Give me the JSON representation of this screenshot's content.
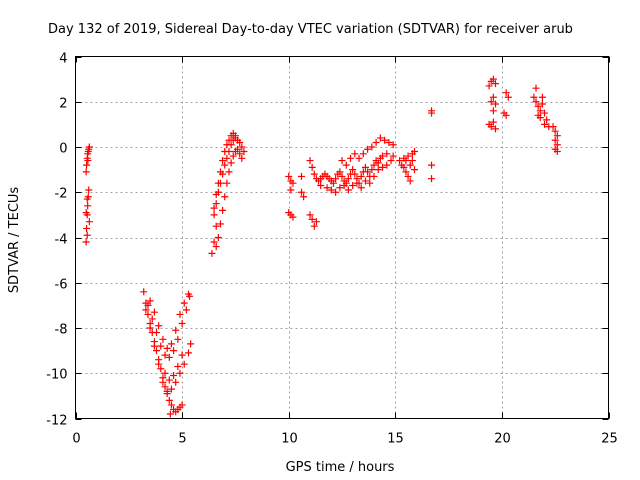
{
  "chart_data": {
    "type": "scatter",
    "title": "Day 132 of 2019, Sidereal Day-to-day VTEC variation (SDTVAR) for receiver arub",
    "xlabel": "GPS time / hours",
    "ylabel": "SDTVAR / TECUs",
    "xlim": [
      0,
      25
    ],
    "ylim": [
      -12,
      4
    ],
    "xticks": [
      0,
      5,
      10,
      15,
      20,
      25
    ],
    "yticks": [
      -12,
      -10,
      -8,
      -6,
      -4,
      -2,
      0,
      2,
      4
    ],
    "grid": true,
    "marker": "+",
    "color": "#ff0000",
    "series": [
      {
        "points": [
          [
            0.5,
            -4.2
          ],
          [
            0.52,
            -3.6
          ],
          [
            0.55,
            -3.0
          ],
          [
            0.57,
            -2.6
          ],
          [
            0.6,
            -2.2
          ],
          [
            0.62,
            -1.9
          ],
          [
            0.5,
            -2.9
          ],
          [
            0.55,
            -2.3
          ],
          [
            0.5,
            -1.1
          ],
          [
            0.52,
            -0.8
          ],
          [
            0.55,
            -0.5
          ],
          [
            0.57,
            -0.3
          ],
          [
            0.6,
            -0.2
          ],
          [
            0.62,
            -0.1
          ],
          [
            0.65,
            0.0
          ],
          [
            0.58,
            -0.6
          ],
          [
            0.65,
            -3.3
          ],
          [
            0.55,
            -3.9
          ],
          [
            3.2,
            -6.4
          ],
          [
            3.3,
            -6.9
          ],
          [
            3.4,
            -7.4
          ],
          [
            3.5,
            -7.8
          ],
          [
            3.6,
            -8.2
          ],
          [
            3.7,
            -8.6
          ],
          [
            3.8,
            -9.0
          ],
          [
            3.9,
            -9.4
          ],
          [
            4.0,
            -9.8
          ],
          [
            4.1,
            -10.2
          ],
          [
            4.2,
            -10.6
          ],
          [
            4.3,
            -10.9
          ],
          [
            4.4,
            -11.2
          ],
          [
            4.5,
            -11.4
          ],
          [
            4.6,
            -11.6
          ],
          [
            4.7,
            -11.7
          ],
          [
            4.8,
            -11.6
          ],
          [
            4.9,
            -11.5
          ],
          [
            5.0,
            -11.4
          ],
          [
            4.45,
            -11.8
          ],
          [
            3.3,
            -7.2
          ],
          [
            3.5,
            -8.0
          ],
          [
            3.7,
            -8.8
          ],
          [
            3.9,
            -9.6
          ],
          [
            4.1,
            -10.4
          ],
          [
            4.3,
            -10.8
          ],
          [
            4.5,
            -10.7
          ],
          [
            4.7,
            -10.4
          ],
          [
            4.9,
            -10.0
          ],
          [
            5.1,
            -9.6
          ],
          [
            5.3,
            -9.1
          ],
          [
            5.4,
            -8.7
          ],
          [
            3.4,
            -7.0
          ],
          [
            3.6,
            -7.6
          ],
          [
            3.8,
            -8.2
          ],
          [
            4.0,
            -8.8
          ],
          [
            4.2,
            -9.2
          ],
          [
            4.4,
            -9.3
          ],
          [
            4.6,
            -9.0
          ],
          [
            4.8,
            -8.5
          ],
          [
            5.0,
            -7.8
          ],
          [
            5.2,
            -7.2
          ],
          [
            5.35,
            -6.6
          ],
          [
            3.5,
            -6.8
          ],
          [
            3.7,
            -7.3
          ],
          [
            3.9,
            -7.9
          ],
          [
            4.1,
            -8.5
          ],
          [
            4.3,
            -8.9
          ],
          [
            4.5,
            -8.7
          ],
          [
            4.7,
            -8.1
          ],
          [
            4.9,
            -7.4
          ],
          [
            5.1,
            -6.9
          ],
          [
            5.3,
            -6.5
          ],
          [
            4.2,
            -10.0
          ],
          [
            4.4,
            -10.3
          ],
          [
            4.6,
            -10.1
          ],
          [
            4.8,
            -9.7
          ],
          [
            5.0,
            -9.2
          ],
          [
            6.4,
            -4.7
          ],
          [
            6.5,
            -4.2
          ],
          [
            6.6,
            -3.5
          ],
          [
            6.5,
            -3.0
          ],
          [
            6.6,
            -2.5
          ],
          [
            6.7,
            -2.0
          ],
          [
            6.8,
            -1.6
          ],
          [
            6.9,
            -1.2
          ],
          [
            7.0,
            -0.8
          ],
          [
            7.1,
            -0.5
          ],
          [
            7.2,
            -0.2
          ],
          [
            7.3,
            0.1
          ],
          [
            7.4,
            0.3
          ],
          [
            7.5,
            0.4
          ],
          [
            7.6,
            0.3
          ],
          [
            7.7,
            0.2
          ],
          [
            7.8,
            0.0
          ],
          [
            7.9,
            -0.2
          ],
          [
            6.6,
            -4.4
          ],
          [
            6.7,
            -4.0
          ],
          [
            6.8,
            -3.4
          ],
          [
            6.9,
            -2.8
          ],
          [
            7.0,
            -2.2
          ],
          [
            7.1,
            -1.6
          ],
          [
            7.2,
            -1.1
          ],
          [
            7.3,
            -0.7
          ],
          [
            7.4,
            -0.4
          ],
          [
            7.5,
            -0.2
          ],
          [
            7.6,
            -0.1
          ],
          [
            7.7,
            -0.3
          ],
          [
            7.8,
            -0.5
          ],
          [
            6.5,
            -2.7
          ],
          [
            6.6,
            -2.1
          ],
          [
            6.7,
            -1.6
          ],
          [
            6.8,
            -1.1
          ],
          [
            6.9,
            -0.6
          ],
          [
            7.0,
            -0.2
          ],
          [
            7.1,
            0.1
          ],
          [
            7.2,
            0.3
          ],
          [
            7.3,
            0.5
          ],
          [
            7.4,
            0.6
          ],
          [
            7.5,
            0.5
          ],
          [
            10.0,
            -1.3
          ],
          [
            10.1,
            -1.5
          ],
          [
            10.2,
            -1.6
          ],
          [
            10.1,
            -1.9
          ],
          [
            10.0,
            -2.9
          ],
          [
            10.1,
            -3.0
          ],
          [
            10.2,
            -3.1
          ],
          [
            10.6,
            -1.3
          ],
          [
            10.6,
            -2.0
          ],
          [
            10.7,
            -2.2
          ],
          [
            11.0,
            -3.0
          ],
          [
            11.1,
            -3.2
          ],
          [
            11.2,
            -3.5
          ],
          [
            11.3,
            -3.3
          ],
          [
            11.0,
            -0.6
          ],
          [
            11.1,
            -0.9
          ],
          [
            11.2,
            -1.2
          ],
          [
            11.3,
            -1.4
          ],
          [
            11.4,
            -1.5
          ],
          [
            11.5,
            -1.4
          ],
          [
            11.6,
            -1.3
          ],
          [
            11.7,
            -1.2
          ],
          [
            11.8,
            -1.3
          ],
          [
            11.9,
            -1.4
          ],
          [
            12.0,
            -1.5
          ],
          [
            12.1,
            -1.6
          ],
          [
            12.2,
            -1.4
          ],
          [
            12.3,
            -1.2
          ],
          [
            12.4,
            -1.1
          ],
          [
            12.5,
            -1.3
          ],
          [
            12.6,
            -1.5
          ],
          [
            12.7,
            -1.6
          ],
          [
            12.8,
            -1.4
          ],
          [
            12.9,
            -1.2
          ],
          [
            13.0,
            -1.0
          ],
          [
            13.1,
            -1.2
          ],
          [
            13.2,
            -1.4
          ],
          [
            13.3,
            -1.6
          ],
          [
            13.4,
            -1.3
          ],
          [
            13.5,
            -1.1
          ],
          [
            13.6,
            -0.9
          ],
          [
            13.7,
            -1.1
          ],
          [
            13.8,
            -1.3
          ],
          [
            13.9,
            -1.0
          ],
          [
            14.0,
            -0.8
          ],
          [
            14.1,
            -0.6
          ],
          [
            14.2,
            -0.7
          ],
          [
            14.3,
            -0.5
          ],
          [
            14.4,
            -0.4
          ],
          [
            11.5,
            -1.7
          ],
          [
            11.8,
            -1.8
          ],
          [
            12.0,
            -1.9
          ],
          [
            12.2,
            -2.0
          ],
          [
            12.4,
            -1.8
          ],
          [
            12.6,
            -1.7
          ],
          [
            12.8,
            -1.9
          ],
          [
            13.0,
            -1.7
          ],
          [
            13.2,
            -1.6
          ],
          [
            13.4,
            -1.8
          ],
          [
            13.6,
            -1.5
          ],
          [
            13.8,
            -1.6
          ],
          [
            14.0,
            -1.3
          ],
          [
            12.5,
            -0.6
          ],
          [
            12.7,
            -0.8
          ],
          [
            12.9,
            -0.5
          ],
          [
            13.1,
            -0.3
          ],
          [
            13.3,
            -0.5
          ],
          [
            13.5,
            -0.3
          ],
          [
            13.7,
            -0.1
          ],
          [
            13.9,
            0.0
          ],
          [
            14.1,
            0.2
          ],
          [
            14.3,
            0.4
          ],
          [
            14.5,
            0.3
          ],
          [
            14.7,
            0.2
          ],
          [
            14.9,
            0.1
          ],
          [
            14.2,
            -1.0
          ],
          [
            14.4,
            -0.9
          ],
          [
            14.6,
            -0.8
          ],
          [
            14.8,
            -0.6
          ],
          [
            14.9,
            -0.4
          ],
          [
            14.6,
            -0.3
          ],
          [
            15.2,
            -0.6
          ],
          [
            15.3,
            -0.8
          ],
          [
            15.4,
            -0.9
          ],
          [
            15.5,
            -1.1
          ],
          [
            15.6,
            -1.3
          ],
          [
            15.7,
            -1.5
          ],
          [
            15.4,
            -0.5
          ],
          [
            15.6,
            -0.4
          ],
          [
            15.8,
            -0.3
          ],
          [
            15.9,
            -0.2
          ],
          [
            15.8,
            -0.6
          ],
          [
            15.7,
            -0.8
          ],
          [
            15.5,
            -0.6
          ],
          [
            15.9,
            -1.0
          ],
          [
            16.7,
            1.6
          ],
          [
            16.7,
            1.5
          ],
          [
            16.7,
            -0.8
          ],
          [
            16.7,
            -1.4
          ],
          [
            19.4,
            2.7
          ],
          [
            19.5,
            2.9
          ],
          [
            19.6,
            3.0
          ],
          [
            19.7,
            2.8
          ],
          [
            19.5,
            2.0
          ],
          [
            19.6,
            2.2
          ],
          [
            19.7,
            1.9
          ],
          [
            19.6,
            1.6
          ],
          [
            19.4,
            1.0
          ],
          [
            19.5,
            0.9
          ],
          [
            19.6,
            1.1
          ],
          [
            19.7,
            0.8
          ],
          [
            20.2,
            2.4
          ],
          [
            20.1,
            1.5
          ],
          [
            20.2,
            1.4
          ],
          [
            20.3,
            2.2
          ],
          [
            21.6,
            2.6
          ],
          [
            21.5,
            2.2
          ],
          [
            21.6,
            2.0
          ],
          [
            21.7,
            1.8
          ],
          [
            21.8,
            1.6
          ],
          [
            21.9,
            1.9
          ],
          [
            22.0,
            1.5
          ],
          [
            21.9,
            2.2
          ],
          [
            21.8,
            1.3
          ],
          [
            22.1,
            1.2
          ],
          [
            22.0,
            1.0
          ],
          [
            22.2,
            0.9
          ],
          [
            22.5,
            0.7
          ],
          [
            22.6,
            0.5
          ],
          [
            22.5,
            0.3
          ],
          [
            22.6,
            0.1
          ],
          [
            22.5,
            -0.1
          ],
          [
            22.6,
            -0.2
          ],
          [
            22.4,
            0.9
          ],
          [
            21.7,
            1.4
          ]
        ]
      }
    ]
  }
}
